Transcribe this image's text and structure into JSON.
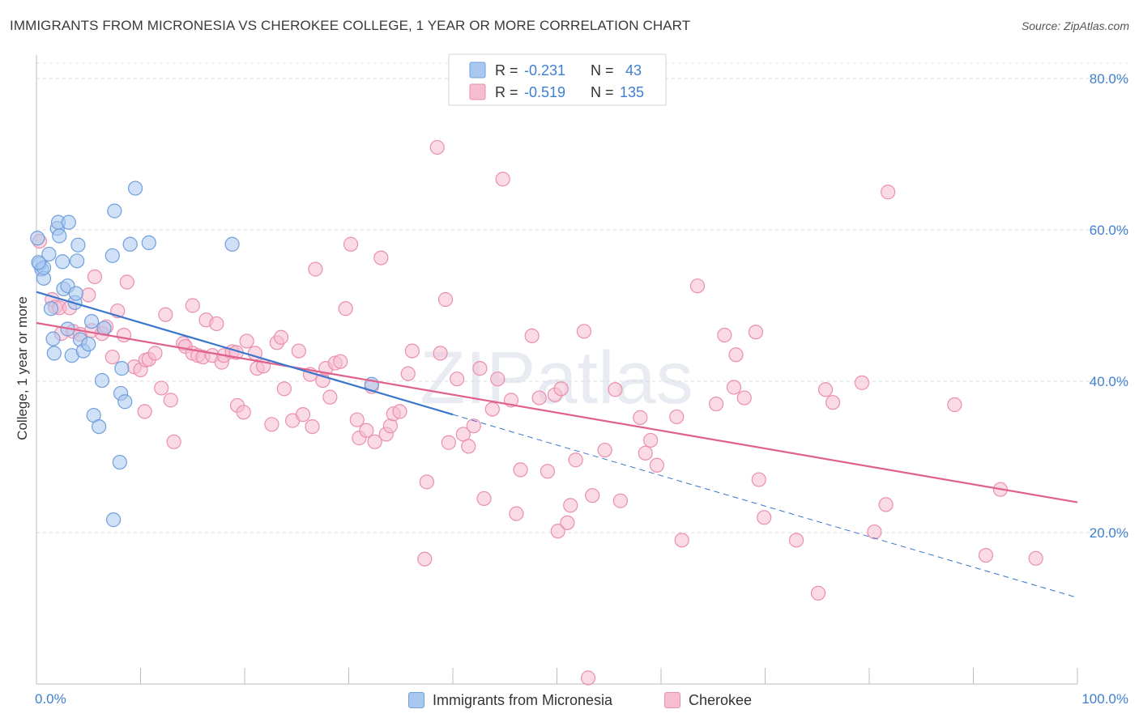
{
  "title": "IMMIGRANTS FROM MICRONESIA VS CHEROKEE COLLEGE, 1 YEAR OR MORE CORRELATION CHART",
  "source": "Source: ZipAtlas.com",
  "watermark": "ZIPatlas",
  "colors": {
    "blue_fill": "#a9c8f0",
    "blue_stroke": "#6f9fdc",
    "blue_line": "#3a76cc",
    "pink_fill": "#f6bcd0",
    "pink_stroke": "#ea8fae",
    "pink_line": "#e0628c",
    "tick": "#3f7fd1"
  },
  "legend": {
    "r_label": "R =",
    "n_label": "N =",
    "series": [
      {
        "r": "-0.231",
        "n": "43"
      },
      {
        "r": "-0.519",
        "n": "135"
      }
    ]
  },
  "chart_data": {
    "type": "scatter",
    "title": "IMMIGRANTS FROM MICRONESIA VS CHEROKEE COLLEGE, 1 YEAR OR MORE CORRELATION CHART",
    "xlabel": "",
    "ylabel": "College, 1 year or more",
    "xlim": [
      0,
      100
    ],
    "ylim": [
      0,
      82
    ],
    "x_tick_labels": [
      "0.0%",
      "100.0%"
    ],
    "y_ticks": [
      20,
      40,
      60,
      80
    ],
    "y_tick_labels": [
      "20.0%",
      "40.0%",
      "60.0%",
      "80.0%"
    ],
    "series": [
      {
        "name": "Immigrants from Micronesia",
        "r": -0.231,
        "n": 43,
        "trend": {
          "x0": 0,
          "y0": 51.8,
          "x1": 40,
          "y1": 35.6
        },
        "trend_extension": {
          "x0": 40,
          "y0": 35.6,
          "x1": 100,
          "y1": 11.4
        },
        "points": [
          [
            0.1,
            58.9
          ],
          [
            0.3,
            55.5
          ],
          [
            0.5,
            54.8
          ],
          [
            0.7,
            53.6
          ],
          [
            0.7,
            55.0
          ],
          [
            1.2,
            56.8
          ],
          [
            1.4,
            49.6
          ],
          [
            1.6,
            45.6
          ],
          [
            1.7,
            43.7
          ],
          [
            2.0,
            60.2
          ],
          [
            2.1,
            61.0
          ],
          [
            2.2,
            59.2
          ],
          [
            2.5,
            55.8
          ],
          [
            2.6,
            52.2
          ],
          [
            3.0,
            52.6
          ],
          [
            3.0,
            46.9
          ],
          [
            3.1,
            61.0
          ],
          [
            3.4,
            43.4
          ],
          [
            3.7,
            50.4
          ],
          [
            3.8,
            51.6
          ],
          [
            3.9,
            55.9
          ],
          [
            4.0,
            58.0
          ],
          [
            4.2,
            45.5
          ],
          [
            4.5,
            44.0
          ],
          [
            5.0,
            44.9
          ],
          [
            5.3,
            47.9
          ],
          [
            5.5,
            35.5
          ],
          [
            6.0,
            34.0
          ],
          [
            6.3,
            40.1
          ],
          [
            6.5,
            47.0
          ],
          [
            7.3,
            56.6
          ],
          [
            7.4,
            21.7
          ],
          [
            7.5,
            62.5
          ],
          [
            8.0,
            29.3
          ],
          [
            8.1,
            38.4
          ],
          [
            8.2,
            41.7
          ],
          [
            8.5,
            37.3
          ],
          [
            9.0,
            58.1
          ],
          [
            9.5,
            65.5
          ],
          [
            10.8,
            58.3
          ],
          [
            18.8,
            58.1
          ],
          [
            32.2,
            39.6
          ],
          [
            0.2,
            55.7
          ]
        ]
      },
      {
        "name": "Cherokee",
        "r": -0.519,
        "n": 135,
        "trend": {
          "x0": 0,
          "y0": 47.7,
          "x1": 100,
          "y1": 24.0
        },
        "points": [
          [
            0.3,
            58.5
          ],
          [
            1.5,
            50.8
          ],
          [
            1.8,
            49.8
          ],
          [
            2.2,
            49.7
          ],
          [
            2.4,
            46.3
          ],
          [
            3.2,
            49.7
          ],
          [
            3.5,
            46.6
          ],
          [
            4.2,
            46.2
          ],
          [
            5.0,
            51.4
          ],
          [
            5.3,
            46.7
          ],
          [
            5.6,
            53.8
          ],
          [
            6.3,
            46.3
          ],
          [
            6.7,
            47.2
          ],
          [
            7.3,
            43.2
          ],
          [
            7.8,
            49.3
          ],
          [
            8.4,
            46.1
          ],
          [
            8.7,
            53.1
          ],
          [
            9.4,
            41.9
          ],
          [
            10.0,
            41.5
          ],
          [
            10.5,
            42.8
          ],
          [
            10.8,
            42.9
          ],
          [
            11.4,
            43.7
          ],
          [
            12.0,
            39.1
          ],
          [
            12.4,
            48.8
          ],
          [
            12.9,
            37.5
          ],
          [
            13.2,
            32.0
          ],
          [
            14.1,
            45.0
          ],
          [
            14.3,
            44.6
          ],
          [
            15.0,
            43.7
          ],
          [
            15.0,
            50.0
          ],
          [
            15.5,
            43.4
          ],
          [
            16.0,
            43.2
          ],
          [
            16.3,
            48.1
          ],
          [
            16.9,
            43.4
          ],
          [
            17.3,
            47.6
          ],
          [
            17.8,
            42.5
          ],
          [
            18.0,
            43.4
          ],
          [
            18.8,
            43.9
          ],
          [
            19.2,
            43.8
          ],
          [
            19.3,
            36.8
          ],
          [
            19.9,
            35.9
          ],
          [
            20.2,
            45.3
          ],
          [
            21.0,
            43.7
          ],
          [
            21.2,
            41.7
          ],
          [
            21.8,
            42.0
          ],
          [
            22.6,
            34.3
          ],
          [
            23.1,
            45.1
          ],
          [
            23.5,
            45.8
          ],
          [
            23.8,
            39.0
          ],
          [
            24.6,
            34.8
          ],
          [
            25.2,
            44.0
          ],
          [
            25.6,
            35.6
          ],
          [
            26.3,
            40.9
          ],
          [
            26.5,
            34.0
          ],
          [
            26.8,
            54.8
          ],
          [
            27.5,
            40.1
          ],
          [
            27.8,
            41.7
          ],
          [
            28.2,
            37.9
          ],
          [
            28.7,
            42.4
          ],
          [
            29.2,
            42.6
          ],
          [
            29.7,
            49.6
          ],
          [
            30.2,
            58.1
          ],
          [
            30.8,
            34.9
          ],
          [
            31.0,
            32.5
          ],
          [
            31.7,
            33.5
          ],
          [
            32.2,
            39.3
          ],
          [
            32.5,
            32.0
          ],
          [
            33.1,
            56.3
          ],
          [
            33.6,
            33.0
          ],
          [
            34.0,
            34.1
          ],
          [
            34.3,
            35.7
          ],
          [
            34.9,
            36.0
          ],
          [
            35.7,
            41.0
          ],
          [
            36.1,
            44.0
          ],
          [
            37.3,
            16.5
          ],
          [
            37.5,
            26.7
          ],
          [
            38.5,
            70.9
          ],
          [
            38.8,
            43.7
          ],
          [
            39.3,
            50.8
          ],
          [
            39.6,
            31.9
          ],
          [
            40.4,
            40.3
          ],
          [
            41.0,
            33.0
          ],
          [
            41.5,
            31.4
          ],
          [
            42.0,
            34.1
          ],
          [
            42.6,
            41.7
          ],
          [
            43.0,
            24.5
          ],
          [
            43.8,
            36.3
          ],
          [
            44.3,
            40.3
          ],
          [
            44.8,
            66.7
          ],
          [
            45.6,
            37.5
          ],
          [
            46.1,
            22.5
          ],
          [
            46.5,
            28.3
          ],
          [
            47.6,
            46.0
          ],
          [
            48.3,
            37.8
          ],
          [
            49.1,
            28.1
          ],
          [
            49.8,
            38.2
          ],
          [
            50.1,
            20.2
          ],
          [
            50.4,
            39.0
          ],
          [
            51.0,
            21.3
          ],
          [
            51.3,
            23.6
          ],
          [
            51.8,
            29.6
          ],
          [
            52.6,
            46.6
          ],
          [
            53.0,
            0.8
          ],
          [
            53.4,
            24.9
          ],
          [
            54.6,
            30.9
          ],
          [
            55.6,
            38.9
          ],
          [
            56.1,
            24.2
          ],
          [
            58.0,
            35.2
          ],
          [
            58.5,
            30.5
          ],
          [
            59.0,
            32.2
          ],
          [
            59.6,
            28.9
          ],
          [
            61.5,
            35.3
          ],
          [
            62.0,
            19.0
          ],
          [
            63.5,
            52.6
          ],
          [
            65.3,
            37.0
          ],
          [
            66.1,
            46.1
          ],
          [
            67.0,
            39.2
          ],
          [
            67.2,
            43.5
          ],
          [
            68.0,
            37.8
          ],
          [
            69.1,
            46.5
          ],
          [
            69.4,
            27.0
          ],
          [
            69.9,
            22.0
          ],
          [
            73.0,
            19.0
          ],
          [
            75.1,
            12.0
          ],
          [
            75.8,
            38.9
          ],
          [
            76.5,
            37.2
          ],
          [
            79.3,
            39.8
          ],
          [
            80.5,
            20.1
          ],
          [
            81.6,
            23.7
          ],
          [
            81.8,
            65.0
          ],
          [
            88.2,
            36.9
          ],
          [
            91.2,
            17.0
          ],
          [
            92.6,
            25.7
          ],
          [
            96.0,
            16.6
          ],
          [
            10.4,
            36.0
          ]
        ]
      }
    ]
  },
  "bottom_legend": [
    "Immigrants from Micronesia",
    "Cherokee"
  ]
}
